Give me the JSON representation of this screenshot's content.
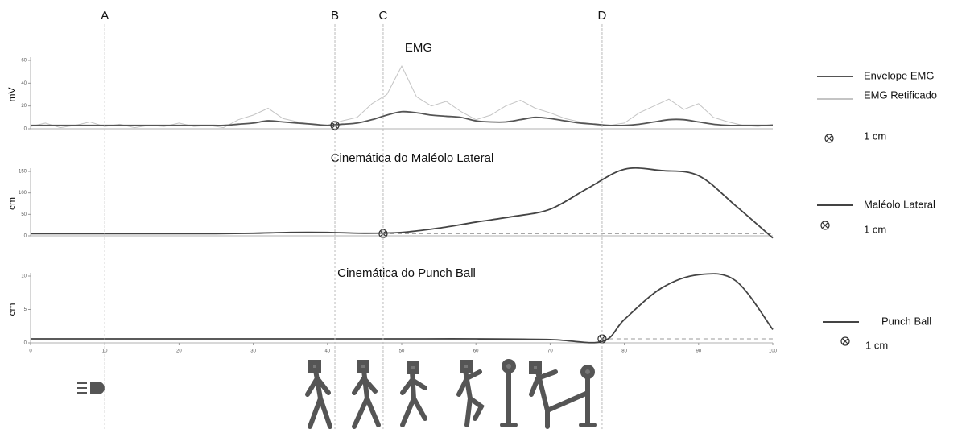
{
  "chart_data": [
    {
      "type": "line",
      "title": "EMG",
      "y_label": "mV",
      "x": [
        0,
        2,
        4,
        6,
        8,
        10,
        12,
        14,
        16,
        18,
        20,
        22,
        24,
        26,
        28,
        30,
        32,
        34,
        36,
        38,
        40,
        42,
        44,
        46,
        48,
        50,
        52,
        54,
        56,
        58,
        60,
        62,
        64,
        66,
        68,
        70,
        72,
        74,
        76,
        78,
        80,
        82,
        84,
        86,
        88,
        90,
        92,
        94,
        96,
        98,
        100
      ],
      "series": [
        {
          "name": "Envelope EMG",
          "color": "#555555",
          "values": [
            3,
            3,
            3,
            3,
            3,
            3,
            3,
            3,
            3,
            3,
            3,
            3,
            3,
            3,
            4,
            5,
            7,
            6,
            5,
            4,
            3,
            4,
            5,
            8,
            12,
            15,
            14,
            12,
            11,
            10,
            7,
            6,
            6,
            8,
            10,
            9,
            7,
            5,
            4,
            3,
            3,
            4,
            6,
            8,
            8,
            6,
            4,
            3,
            3,
            3,
            3
          ]
        },
        {
          "name": "EMG Retificado",
          "color": "#c4c4c4",
          "values": [
            2,
            5,
            1,
            3,
            6,
            2,
            4,
            1,
            3,
            2,
            5,
            2,
            3,
            1,
            8,
            12,
            18,
            9,
            6,
            4,
            3,
            7,
            10,
            22,
            30,
            55,
            28,
            20,
            24,
            15,
            8,
            12,
            20,
            25,
            18,
            14,
            9,
            6,
            4,
            3,
            5,
            14,
            20,
            26,
            17,
            22,
            10,
            6,
            3,
            2,
            4
          ]
        }
      ],
      "scale_label": "1 cm",
      "event": {
        "x": 41,
        "y": 3
      },
      "xlim": [
        0,
        100
      ],
      "ylim": [
        0,
        60
      ],
      "yticks": [
        0,
        20,
        40,
        60
      ]
    },
    {
      "type": "line",
      "title": "Cinemática do Maléolo Lateral",
      "y_label": "cm",
      "x": [
        0,
        5,
        10,
        15,
        20,
        25,
        30,
        35,
        40,
        45,
        50,
        55,
        60,
        65,
        70,
        75,
        80,
        85,
        90,
        95,
        100
      ],
      "series": [
        {
          "name": "Maléolo Lateral",
          "color": "#444444",
          "values": [
            5,
            5,
            5,
            5,
            5,
            5,
            6,
            8,
            8,
            6,
            8,
            18,
            32,
            45,
            62,
            110,
            155,
            152,
            140,
            70,
            -5
          ]
        }
      ],
      "scale_label": "1 cm",
      "event": {
        "x": 47.5,
        "y": 5
      },
      "baseline": {
        "from": 47.5,
        "value": 5
      },
      "xlim": [
        0,
        100
      ],
      "ylim": [
        0,
        150
      ],
      "yticks": [
        0,
        50,
        100,
        150
      ]
    },
    {
      "type": "line",
      "title": "Cinemática do Punch Ball",
      "y_label": "cm",
      "x": [
        0,
        10,
        20,
        30,
        40,
        50,
        60,
        70,
        77,
        80,
        85,
        90,
        95,
        100
      ],
      "series": [
        {
          "name": "Punch Ball",
          "color": "#444444",
          "values": [
            0.6,
            0.6,
            0.6,
            0.6,
            0.6,
            0.6,
            0.6,
            0.5,
            0.2,
            3.5,
            8.2,
            10.2,
            9.3,
            2
          ]
        }
      ],
      "scale_label": "1 cm",
      "event": {
        "x": 77,
        "y": 0.6
      },
      "baseline": {
        "from": 77,
        "value": 0.6
      },
      "xlim": [
        0,
        100
      ],
      "ylim": [
        0,
        10
      ],
      "yticks": [
        0,
        5,
        10
      ],
      "xticks": [
        0,
        10,
        20,
        30,
        40,
        50,
        60,
        70,
        80,
        90,
        100
      ]
    }
  ],
  "markers": [
    {
      "label": "A",
      "x": 10
    },
    {
      "label": "B",
      "x": 41
    },
    {
      "label": "C",
      "x": 47.5
    },
    {
      "label": "D",
      "x": 77
    }
  ]
}
